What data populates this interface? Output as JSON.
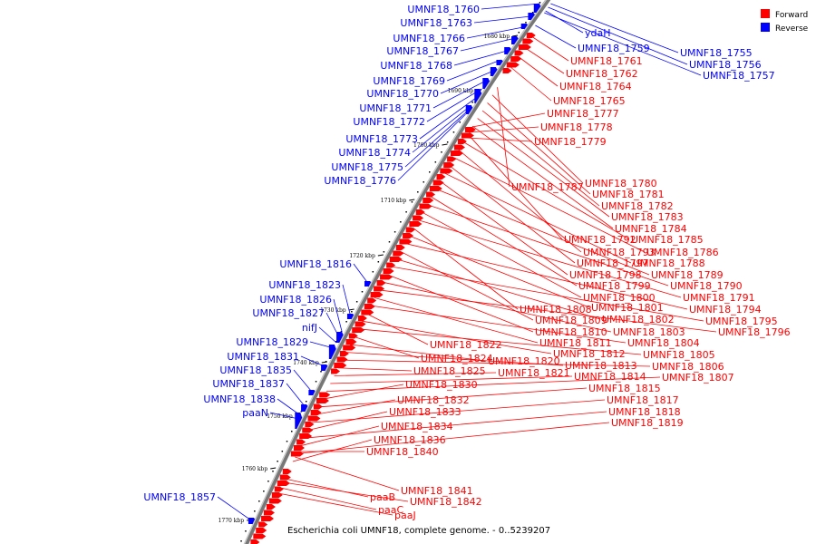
{
  "legend": {
    "forward_label": "Forward",
    "reverse_label": "Reverse",
    "forward_color": "#ff0000",
    "reverse_color": "#0000ff"
  },
  "caption": "Escherichia coli UMNF18, complete genome. - 0..5239207",
  "ticks": [
    "1680 kbp",
    "1690 kbp",
    "1700 kbp",
    "1710 kbp",
    "1720 kbp",
    "1730 kbp",
    "1740 kbp",
    "1750 kbp",
    "1760 kbp",
    "1770 kbp"
  ],
  "reverse_left_labels": [
    "UMNF18_1760",
    "UMNF18_1763",
    "UMNF18_1766",
    "UMNF18_1767",
    "UMNF18_1768",
    "UMNF18_1769",
    "UMNF18_1770",
    "UMNF18_1771",
    "UMNF18_1772",
    "UMNF18_1773",
    "UMNF18_1774",
    "UMNF18_1775",
    "UMNF18_1776",
    "UMNF18_1816",
    "UMNF18_1823",
    "UMNF18_1826",
    "UMNF18_1827",
    "nifJ",
    "UMNF18_1829",
    "UMNF18_1831",
    "UMNF18_1835",
    "UMNF18_1837",
    "UMNF18_1838",
    "paaN",
    "UMNF18_1857"
  ],
  "reverse_right_labels": [
    "ydaH",
    "UMNF18_1759",
    "UMNF18_1755",
    "UMNF18_1756",
    "UMNF18_1757"
  ],
  "forward_labels": [
    "UMNF18_1761",
    "UMNF18_1762",
    "UMNF18_1764",
    "UMNF18_1765",
    "UMNF18_1777",
    "UMNF18_1778",
    "UMNF18_1779",
    "UMNF18_1787",
    "UMNF18_1780",
    "UMNF18_1781",
    "UMNF18_1782",
    "UMNF18_1783",
    "UMNF18_1784",
    "UMNF18_1792",
    "UMNF18_1785",
    "UMNF18_1793",
    "UMNF18_1786",
    "UMNF18_1797",
    "UMNF18_1788",
    "UMNF18_1798",
    "UMNF18_1789",
    "UMNF18_1799",
    "UMNF18_1790",
    "UMNF18_1800",
    "UMNF18_1791",
    "UMNF18_1808",
    "UMNF18_1801",
    "UMNF18_1794",
    "UMNF18_1809",
    "UMNF18_1802",
    "UMNF18_1795",
    "UMNF18_1810",
    "UMNF18_1803",
    "UMNF18_1796",
    "UMNF18_1811",
    "UMNF18_1804",
    "UMNF18_1822",
    "UMNF18_1812",
    "UMNF18_1805",
    "UMNF18_1824",
    "UMNF18_1820",
    "UMNF18_1813",
    "UMNF18_1806",
    "UMNF18_1825",
    "UMNF18_1821",
    "UMNF18_1814",
    "UMNF18_1807",
    "UMNF18_1830",
    "UMNF18_1815",
    "UMNF18_1832",
    "UMNF18_1817",
    "UMNF18_1833",
    "UMNF18_1818",
    "UMNF18_1834",
    "UMNF18_1819",
    "UMNF18_1836",
    "UMNF18_1840",
    "UMNF18_1841",
    "paaB",
    "UMNF18_1842",
    "paaC",
    "paaJ"
  ]
}
